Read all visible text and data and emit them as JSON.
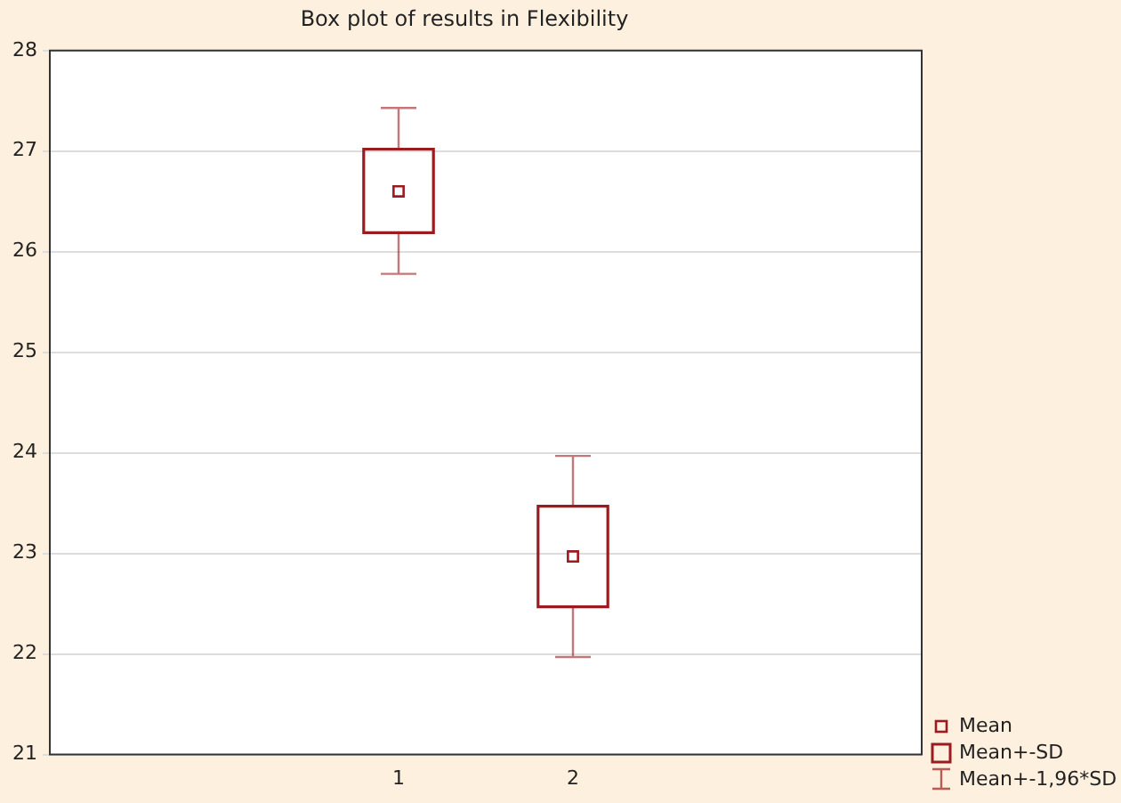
{
  "chart_data": {
    "type": "box",
    "title": "Box plot of results in Flexibility",
    "categories": [
      "1",
      "2"
    ],
    "series": [
      {
        "color": "#9b1c20",
        "boxes": [
          {
            "low": 25.78,
            "q1": 26.19,
            "median": 26.6,
            "q3": 27.02,
            "high": 27.43
          },
          {
            "low": 21.97,
            "q1": 22.47,
            "median": 22.97,
            "q3": 23.47,
            "high": 23.97
          }
        ]
      }
    ],
    "ylim": [
      21,
      28
    ],
    "yticks": [
      21,
      22,
      23,
      24,
      25,
      26,
      27,
      28
    ],
    "grid": "y",
    "annotations": [
      "Mean",
      "Mean+-SD",
      "Mean+-1,96*SD"
    ]
  }
}
